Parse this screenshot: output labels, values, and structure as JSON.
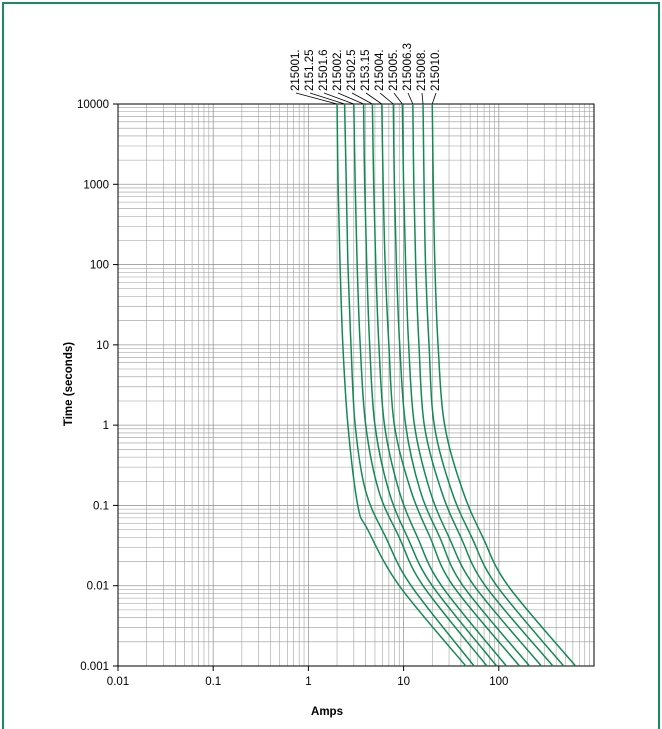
{
  "colors": {
    "frame": "#1b8a5e",
    "curve": "#138a55",
    "grid": "#9a9a9a",
    "axis": "#000000"
  },
  "chart_data": {
    "type": "line",
    "title": "",
    "xlabel": "Amps",
    "ylabel": "Time (seconds)",
    "x_scale": "log",
    "y_scale": "log",
    "xlim": [
      0.01,
      1000
    ],
    "ylim": [
      0.001,
      10000
    ],
    "grid": true,
    "x_ticks": [
      {
        "value": 0.01,
        "label": "0.01"
      },
      {
        "value": 0.1,
        "label": "0.1"
      },
      {
        "value": 1,
        "label": "1"
      },
      {
        "value": 10,
        "label": "10"
      },
      {
        "value": 100,
        "label": "100"
      }
    ],
    "y_ticks": [
      {
        "value": 0.001,
        "label": "0.001"
      },
      {
        "value": 0.01,
        "label": "0.01"
      },
      {
        "value": 0.1,
        "label": "0.1"
      },
      {
        "value": 1,
        "label": "1"
      },
      {
        "value": 10,
        "label": "10"
      },
      {
        "value": 100,
        "label": "100"
      },
      {
        "value": 1000,
        "label": "1000"
      },
      {
        "value": 10000,
        "label": "10000"
      }
    ],
    "series": [
      {
        "name": "215001.",
        "points": [
          [
            2.0,
            10000
          ],
          [
            2.05,
            1000
          ],
          [
            2.15,
            100
          ],
          [
            2.3,
            10
          ],
          [
            2.6,
            1
          ],
          [
            3.3,
            0.1
          ],
          [
            4.2,
            0.05
          ],
          [
            9,
            0.01
          ],
          [
            45,
            0.001
          ]
        ]
      },
      {
        "name": "2151.25",
        "points": [
          [
            2.4,
            10000
          ],
          [
            2.5,
            1000
          ],
          [
            2.6,
            100
          ],
          [
            2.8,
            10
          ],
          [
            3.1,
            1
          ],
          [
            4.0,
            0.15
          ],
          [
            6.5,
            0.04
          ],
          [
            12,
            0.01
          ],
          [
            55,
            0.001
          ]
        ]
      },
      {
        "name": "21501.6",
        "points": [
          [
            3.0,
            10000
          ],
          [
            3.1,
            1000
          ],
          [
            3.25,
            100
          ],
          [
            3.5,
            10
          ],
          [
            4.0,
            1
          ],
          [
            5.5,
            0.15
          ],
          [
            9,
            0.04
          ],
          [
            16,
            0.01
          ],
          [
            75,
            0.001
          ]
        ]
      },
      {
        "name": "215002.",
        "points": [
          [
            3.8,
            10000
          ],
          [
            3.9,
            1000
          ],
          [
            4.1,
            100
          ],
          [
            4.4,
            10
          ],
          [
            5.0,
            1
          ],
          [
            7.0,
            0.15
          ],
          [
            11,
            0.04
          ],
          [
            20,
            0.01
          ],
          [
            95,
            0.001
          ]
        ]
      },
      {
        "name": "21502.5",
        "points": [
          [
            4.7,
            10000
          ],
          [
            4.85,
            1000
          ],
          [
            5.1,
            100
          ],
          [
            5.5,
            10
          ],
          [
            6.3,
            1
          ],
          [
            9,
            0.15
          ],
          [
            14,
            0.04
          ],
          [
            25,
            0.01
          ],
          [
            120,
            0.001
          ]
        ]
      },
      {
        "name": "2153.15",
        "points": [
          [
            5.9,
            10000
          ],
          [
            6.1,
            1000
          ],
          [
            6.4,
            100
          ],
          [
            7.0,
            10
          ],
          [
            8.0,
            1
          ],
          [
            12,
            0.15
          ],
          [
            19,
            0.04
          ],
          [
            33,
            0.01
          ],
          [
            165,
            0.001
          ]
        ]
      },
      {
        "name": "215004.",
        "points": [
          [
            7.8,
            10000
          ],
          [
            8.0,
            1000
          ],
          [
            8.4,
            100
          ],
          [
            9.1,
            10
          ],
          [
            10.5,
            1
          ],
          [
            15,
            0.15
          ],
          [
            24,
            0.04
          ],
          [
            42,
            0.01
          ],
          [
            210,
            0.001
          ]
        ]
      },
      {
        "name": "215005.",
        "points": [
          [
            9.7,
            10000
          ],
          [
            10,
            1000
          ],
          [
            10.5,
            100
          ],
          [
            11.3,
            10
          ],
          [
            13,
            1
          ],
          [
            19,
            0.15
          ],
          [
            30,
            0.04
          ],
          [
            55,
            0.01
          ],
          [
            280,
            0.001
          ]
        ]
      },
      {
        "name": "215006.3",
        "points": [
          [
            12.5,
            10000
          ],
          [
            12.8,
            1000
          ],
          [
            13.4,
            100
          ],
          [
            14.5,
            10
          ],
          [
            16.5,
            1
          ],
          [
            25,
            0.15
          ],
          [
            40,
            0.04
          ],
          [
            72,
            0.01
          ],
          [
            370,
            0.001
          ]
        ]
      },
      {
        "name": "215008.",
        "points": [
          [
            16,
            10000
          ],
          [
            16.4,
            1000
          ],
          [
            17,
            100
          ],
          [
            18.5,
            10
          ],
          [
            21,
            1
          ],
          [
            32,
            0.15
          ],
          [
            52,
            0.04
          ],
          [
            95,
            0.01
          ],
          [
            480,
            0.001
          ]
        ]
      },
      {
        "name": "215010.",
        "points": [
          [
            20,
            10000
          ],
          [
            20.5,
            1000
          ],
          [
            21.3,
            100
          ],
          [
            23,
            10
          ],
          [
            27,
            1
          ],
          [
            42,
            0.15
          ],
          [
            68,
            0.04
          ],
          [
            125,
            0.01
          ],
          [
            640,
            0.001
          ]
        ]
      }
    ]
  }
}
